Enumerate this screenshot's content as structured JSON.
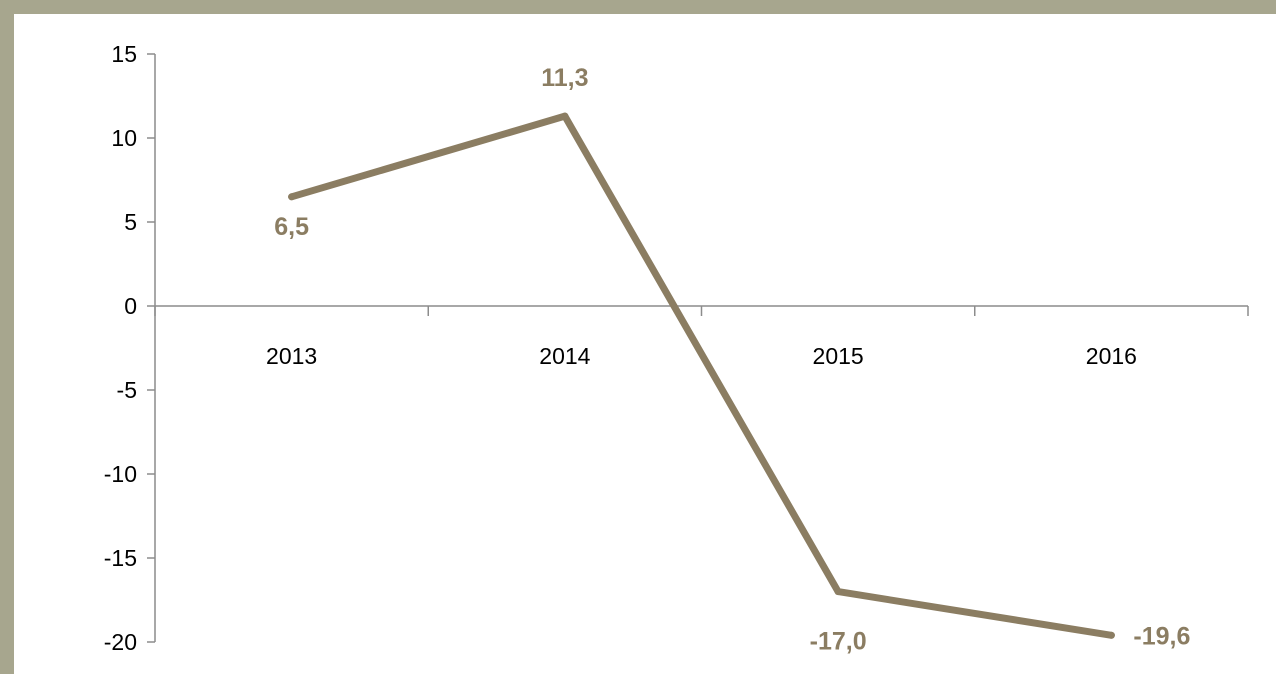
{
  "chart_data": {
    "type": "line",
    "categories": [
      "2013",
      "2014",
      "2015",
      "2016"
    ],
    "series": [
      {
        "values": [
          6.5,
          11.3,
          -17.0,
          -19.6
        ]
      }
    ],
    "data_labels": [
      "6,5",
      "11,3",
      "-17,0",
      "-19,6"
    ],
    "y_ticks": [
      "15",
      "10",
      "5",
      "0",
      "-5",
      "-10",
      "-15",
      "-20"
    ],
    "ylim": [
      -20,
      15
    ],
    "grid": false,
    "legend": "none",
    "line_color": "#8b7d62",
    "label_color": "#8b7d62",
    "axis_color": "#8c8c8c"
  }
}
